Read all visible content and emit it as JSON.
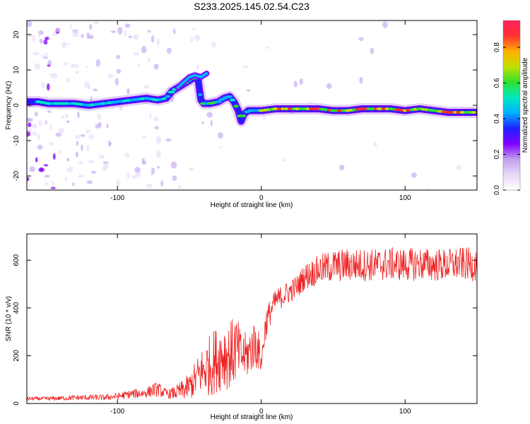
{
  "title": "S233.2025.145.02.54.C23",
  "chart_data": [
    {
      "type": "heatmap",
      "title": "S233.2025.145.02.54.C23",
      "xlabel": "Height of straight line (km)",
      "ylabel": "Frequency (Hz)",
      "xlim": [
        -163,
        150
      ],
      "ylim": [
        -24,
        24
      ],
      "xticks": [
        -100,
        0,
        100
      ],
      "yticks": [
        -20,
        -10,
        0,
        10,
        20
      ],
      "grid": false,
      "colorbar": {
        "label": "Normalized spectral amplitude",
        "range": [
          0,
          0.95
        ],
        "ticks": [
          "0.0",
          "0.2",
          "0.4",
          "0.6",
          "0.8"
        ],
        "colormap": [
          "#ffffff",
          "#e8d8f8",
          "#c0a0f0",
          "#8000ff",
          "#2020ff",
          "#00b0ff",
          "#00e8c0",
          "#30e030",
          "#c0e000",
          "#ffb000",
          "#ff3030",
          "#ff2060"
        ]
      },
      "ridge": {
        "x": [
          -163,
          -155,
          -148,
          -140,
          -130,
          -120,
          -110,
          -100,
          -90,
          -80,
          -72,
          -66,
          -62,
          -58,
          -54,
          -50,
          -46,
          -44,
          -42,
          -40,
          -36,
          -30,
          -26,
          -22,
          -19,
          -16,
          -14,
          -12,
          -9,
          -6,
          -3,
          0,
          10,
          20,
          30,
          40,
          50,
          60,
          70,
          80,
          90,
          100,
          110,
          120,
          130,
          140,
          150
        ],
        "y": [
          1,
          1,
          0.5,
          0.5,
          0.5,
          0,
          0.5,
          1,
          1.5,
          2,
          1.5,
          2,
          4,
          5,
          6,
          7,
          8,
          7.5,
          1.5,
          0.5,
          0.5,
          1,
          2,
          2.5,
          1,
          -1.5,
          -4.5,
          -2.5,
          -1.5,
          -1.5,
          -1.5,
          -1.5,
          -1,
          -1,
          -1,
          -1,
          -1.5,
          -1.5,
          -1,
          -1,
          -1,
          -1.5,
          -1,
          -1.5,
          -2,
          -2,
          -2
        ]
      }
    },
    {
      "type": "line",
      "xlabel": "Height of straight line (km)",
      "ylabel": "SNR (10 * v/v)",
      "xlim": [
        -163,
        150
      ],
      "ylim": [
        0,
        710
      ],
      "xticks": [
        -100,
        0,
        100
      ],
      "yticks": [
        0,
        200,
        400,
        600
      ],
      "grid": false,
      "color": "#ee2222",
      "series": [
        {
          "x": [
            -163,
            -150,
            -140,
            -130,
            -120,
            -110,
            -100,
            -95,
            -90,
            -85,
            -80,
            -76,
            -72,
            -68,
            -64,
            -60,
            -55,
            -50,
            -46,
            -42,
            -38,
            -34,
            -30,
            -26,
            -22,
            -18,
            -14,
            -10,
            -6,
            -3,
            0,
            3,
            6,
            10,
            15,
            20,
            25,
            30,
            40,
            50,
            60,
            70,
            80,
            90,
            100,
            110,
            120,
            130,
            140,
            150
          ],
          "values": [
            20,
            20,
            22,
            24,
            25,
            25,
            30,
            35,
            40,
            42,
            45,
            55,
            60,
            45,
            40,
            45,
            55,
            70,
            100,
            130,
            150,
            170,
            190,
            210,
            200,
            230,
            200,
            200,
            240,
            250,
            170,
            330,
            380,
            430,
            450,
            470,
            490,
            530,
            560,
            575,
            580,
            580,
            580,
            585,
            580,
            585,
            580,
            580,
            585,
            580
          ],
          "spread": [
            12,
            12,
            14,
            16,
            18,
            18,
            20,
            24,
            28,
            30,
            30,
            40,
            45,
            30,
            30,
            40,
            60,
            80,
            110,
            140,
            170,
            200,
            200,
            220,
            200,
            220,
            150,
            140,
            150,
            160,
            60,
            100,
            80,
            70,
            70,
            70,
            70,
            80,
            90,
            100,
            100,
            100,
            100,
            100,
            100,
            100,
            100,
            100,
            100,
            100
          ]
        }
      ]
    }
  ]
}
